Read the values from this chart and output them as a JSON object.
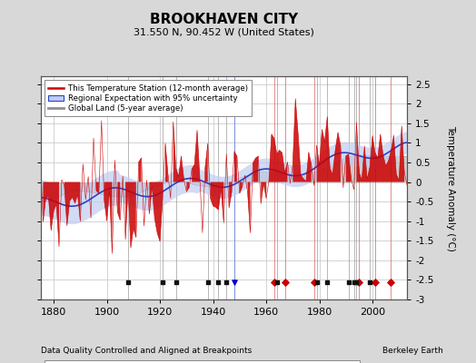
{
  "title": "BROOKHAVEN CITY",
  "subtitle": "31.550 N, 90.452 W (United States)",
  "ylabel": "Temperature Anomaly (°C)",
  "xlabel_note": "Data Quality Controlled and Aligned at Breakpoints",
  "credit": "Berkeley Earth",
  "year_start": 1875,
  "year_end": 2013,
  "ylim": [
    -3.0,
    2.7
  ],
  "yticks": [
    -3,
    -2.5,
    -2,
    -1.5,
    -1,
    -0.5,
    0,
    0.5,
    1,
    1.5,
    2,
    2.5
  ],
  "xticks": [
    1880,
    1900,
    1920,
    1940,
    1960,
    1980,
    2000
  ],
  "bg_color": "#d8d8d8",
  "plot_bg_color": "#ffffff",
  "grid_color": "#cccccc",
  "station_moves": [
    1963,
    1967,
    1978,
    1995,
    2001,
    2007
  ],
  "time_obs_changes": [
    1948
  ],
  "empirical_breaks": [
    1908,
    1921,
    1926,
    1938,
    1942,
    1945,
    1964,
    1979,
    1983,
    1991,
    1993,
    1994,
    1999
  ],
  "record_gaps": []
}
